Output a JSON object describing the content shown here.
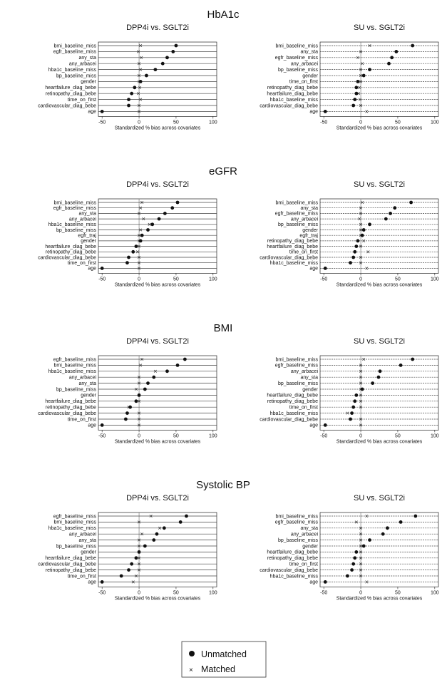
{
  "chart_data": [
    {
      "type": "scatter",
      "section_title": "HbA1c",
      "title": "DPP4i vs. SGLT2i",
      "xlabel": "Standardized % bias across covariates",
      "xlim": [
        -55,
        105
      ],
      "xticks": [
        -50,
        0,
        50,
        100
      ],
      "covariates": [
        "bmi_baseline_miss",
        "egfr_baseline_miss",
        "any_sta",
        "any_arbacei",
        "hba1c_baseline_miss",
        "bp_baseline_miss",
        "gender",
        "heartfailure_diag_bebe",
        "retinopathy_diag_bebe",
        "time_on_first",
        "cardiovascular_diag_bebe",
        "age"
      ],
      "series": [
        {
          "name": "Unmatched",
          "values": [
            50,
            46,
            38,
            32,
            22,
            10,
            2,
            -6,
            -10,
            -14,
            -14,
            -50
          ]
        },
        {
          "name": "Matched",
          "values": [
            2,
            -1,
            3,
            0,
            2,
            0,
            0,
            1,
            -1,
            2,
            0,
            0
          ]
        }
      ]
    },
    {
      "type": "scatter",
      "section_title": "HbA1c",
      "title": "SU vs. SGLT2i",
      "xlabel": "Standardized % bias across covariates",
      "xlim": [
        -55,
        105
      ],
      "xticks": [
        -50,
        0,
        50,
        100
      ],
      "covariates": [
        "bmi_baseline_miss",
        "any_sta",
        "egfr_baseline_miss",
        "any_arbacei",
        "bp_baseline_miss",
        "gender",
        "time_on_first",
        "retinopathy_diag_bebe",
        "heartfailure_diag_bebe",
        "hba1c_baseline_miss",
        "cardiovascular_diag_bebe",
        "age"
      ],
      "series": [
        {
          "name": "Unmatched",
          "values": [
            70,
            48,
            42,
            38,
            12,
            4,
            -4,
            -6,
            -6,
            -8,
            -10,
            -48
          ]
        },
        {
          "name": "Matched",
          "values": [
            12,
            0,
            -4,
            2,
            0,
            0,
            0,
            -2,
            -3,
            -1,
            0,
            8
          ]
        }
      ]
    },
    {
      "type": "scatter",
      "section_title": "eGFR",
      "title": "DPP4i vs. SGLT2i",
      "xlabel": "Standardized % bias across covariates",
      "xlim": [
        -55,
        105
      ],
      "xticks": [
        -50,
        0,
        50,
        100
      ],
      "covariates": [
        "bmi_baseline_miss",
        "egfr_baseline_miss",
        "any_sta",
        "any_arbacei",
        "hba1c_baseline_miss",
        "bp_baseline_miss",
        "egfr_traj",
        "gender",
        "heartfailure_diag_bebe",
        "retinopathy_diag_bebe",
        "cardiovascular_diag_bebe",
        "time_on_first",
        "age"
      ],
      "series": [
        {
          "name": "Unmatched",
          "values": [
            52,
            45,
            35,
            27,
            18,
            12,
            4,
            2,
            -4,
            -8,
            -14,
            -16,
            -50
          ]
        },
        {
          "name": "Matched",
          "values": [
            4,
            2,
            0,
            6,
            14,
            2,
            0,
            0,
            0,
            -2,
            0,
            0,
            0
          ]
        }
      ]
    },
    {
      "type": "scatter",
      "section_title": "eGFR",
      "title": "SU vs. SGLT2i",
      "xlabel": "Standardized % bias across covariates",
      "xlim": [
        -55,
        105
      ],
      "xticks": [
        -50,
        0,
        50,
        100
      ],
      "covariates": [
        "bmi_baseline_miss",
        "any_sta",
        "egfr_baseline_miss",
        "any_arbacei",
        "bp_baseline_miss",
        "gender",
        "egfr_traj",
        "retinopathy_diag_bebe",
        "heartfailure_diag_bebe",
        "time_on_first",
        "cardiovascular_diag_bebe",
        "hba1c_baseline_miss",
        "age"
      ],
      "series": [
        {
          "name": "Unmatched",
          "values": [
            68,
            46,
            40,
            34,
            12,
            4,
            2,
            -4,
            -6,
            -8,
            -10,
            -14,
            -48
          ]
        },
        {
          "name": "Matched",
          "values": [
            2,
            0,
            0,
            -2,
            0,
            0,
            0,
            4,
            0,
            10,
            0,
            0,
            8
          ]
        }
      ]
    },
    {
      "type": "scatter",
      "section_title": "BMI",
      "title": "DPP4i vs. SGLT2i",
      "xlabel": "Standardized % bias across covariates",
      "xlim": [
        -55,
        105
      ],
      "xticks": [
        -50,
        0,
        50,
        100
      ],
      "covariates": [
        "egfr_baseline_miss",
        "bmi_baseline_miss",
        "hba1c_baseline_miss",
        "any_arbacei",
        "any_sta",
        "bp_baseline_miss",
        "gender",
        "heartfailure_diag_bebe",
        "retinopathy_diag_bebe",
        "cardiovascular_diag_bebe",
        "time_on_first",
        "age"
      ],
      "series": [
        {
          "name": "Unmatched",
          "values": [
            62,
            52,
            38,
            20,
            12,
            8,
            0,
            -4,
            -12,
            -16,
            -18,
            -50
          ]
        },
        {
          "name": "Matched",
          "values": [
            4,
            2,
            22,
            0,
            0,
            -4,
            0,
            0,
            -14,
            0,
            0,
            0
          ]
        }
      ]
    },
    {
      "type": "scatter",
      "section_title": "BMI",
      "title": "SU vs. SGLT2i",
      "xlabel": "Standardized % bias across covariates",
      "xlim": [
        -55,
        105
      ],
      "xticks": [
        -50,
        0,
        50,
        100
      ],
      "covariates": [
        "bmi_baseline_miss",
        "egfr_baseline_miss",
        "any_arbacei",
        "any_sta",
        "bp_baseline_miss",
        "gender",
        "heartfailure_diag_bebe",
        "retinopathy_diag_bebe",
        "time_on_first",
        "hba1c_baseline_miss",
        "cardiovascular_diag_bebe",
        "age"
      ],
      "series": [
        {
          "name": "Unmatched",
          "values": [
            70,
            54,
            26,
            24,
            16,
            2,
            -6,
            -8,
            -10,
            -12,
            -14,
            -48
          ]
        },
        {
          "name": "Matched",
          "values": [
            4,
            0,
            0,
            0,
            0,
            0,
            0,
            0,
            0,
            -18,
            0,
            0
          ]
        }
      ]
    },
    {
      "type": "scatter",
      "section_title": "Systolic BP",
      "title": "DPP4i vs. SGLT2i",
      "xlabel": "Standardized % bias across covariates",
      "xlim": [
        -55,
        105
      ],
      "xticks": [
        -50,
        0,
        50,
        100
      ],
      "covariates": [
        "egfr_baseline_miss",
        "bmi_baseline_miss",
        "hba1c_baseline_miss",
        "any_arbacei",
        "any_sta",
        "bp_baseline_miss",
        "gender",
        "heartfailure_diag_bebe",
        "cardiovascular_diag_bebe",
        "retinopathy_diag_bebe",
        "time_on_first",
        "age"
      ],
      "series": [
        {
          "name": "Unmatched",
          "values": [
            64,
            56,
            34,
            24,
            20,
            8,
            0,
            -4,
            -10,
            -14,
            -24,
            -50
          ]
        },
        {
          "name": "Matched",
          "values": [
            16,
            0,
            28,
            4,
            0,
            0,
            0,
            0,
            0,
            0,
            -4,
            -8
          ]
        }
      ]
    },
    {
      "type": "scatter",
      "section_title": "Systolic BP",
      "title": "SU vs. SGLT2i",
      "xlabel": "Standardized % bias across covariates",
      "xlim": [
        -55,
        105
      ],
      "xticks": [
        -50,
        0,
        50,
        100
      ],
      "covariates": [
        "bmi_baseline_miss",
        "egfr_baseline_miss",
        "any_sta",
        "any_arbacei",
        "bp_baseline_miss",
        "gender",
        "heartfailure_diag_bebe",
        "retinopathy_diag_bebe",
        "time_on_first",
        "cardiovascular_diag_bebe",
        "hba1c_baseline_miss",
        "age"
      ],
      "series": [
        {
          "name": "Unmatched",
          "values": [
            74,
            54,
            36,
            30,
            12,
            4,
            -6,
            -8,
            -10,
            -12,
            -18,
            -48
          ]
        },
        {
          "name": "Matched",
          "values": [
            8,
            -6,
            0,
            0,
            0,
            0,
            0,
            0,
            0,
            0,
            0,
            8
          ]
        }
      ]
    }
  ],
  "legend": {
    "position": "bottom-center",
    "unmatched_label": "Unmatched",
    "matched_label": "Matched"
  }
}
